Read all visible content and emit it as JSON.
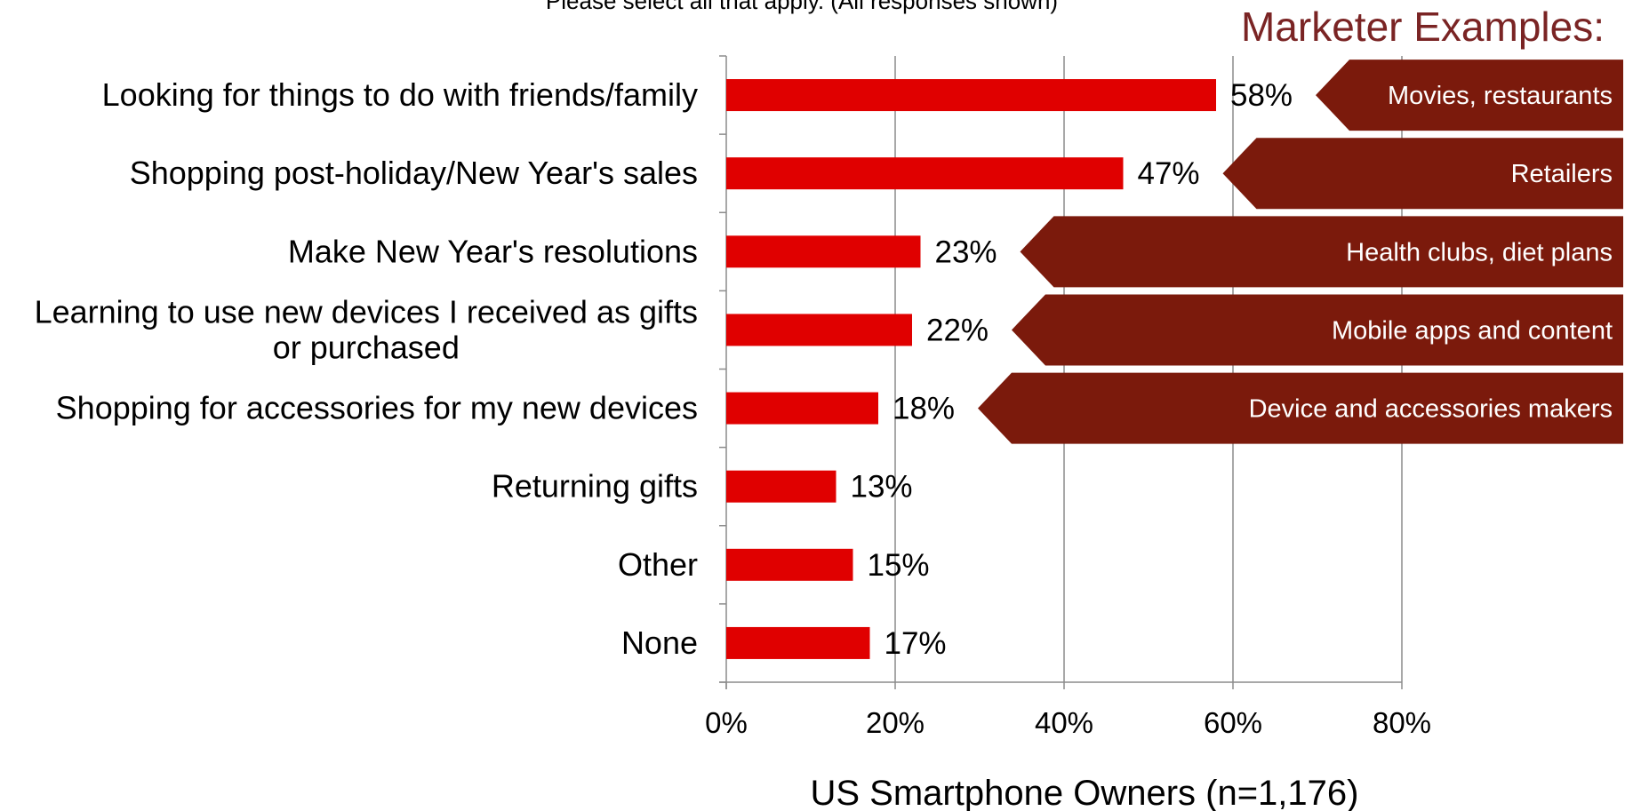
{
  "chart_data": {
    "type": "bar",
    "orientation": "horizontal",
    "subtitle": "Please select all that apply. (All responses shown)",
    "xlabel": "US Smartphone Owners (n=1,176)",
    "ylabel": "",
    "xlim": [
      0,
      80
    ],
    "xticks": [
      0,
      20,
      40,
      60,
      80
    ],
    "xtick_labels": [
      "0%",
      "20%",
      "40%",
      "60%",
      "80%"
    ],
    "grid": "vertical",
    "bar_color": "#e00000",
    "categories": [
      [
        "Looking for things to do with friends/family"
      ],
      [
        "Shopping post-holiday/New Year's sales"
      ],
      [
        "Make New Year's resolutions"
      ],
      [
        "Learning to use new devices I received as gifts",
        "or purchased"
      ],
      [
        "Shopping for accessories for my new devices"
      ],
      [
        "Returning gifts"
      ],
      [
        "Other"
      ],
      [
        "None"
      ]
    ],
    "values": [
      58,
      47,
      23,
      22,
      18,
      13,
      15,
      17
    ],
    "data_labels": [
      "58%",
      "47%",
      "23%",
      "22%",
      "18%",
      "13%",
      "15%",
      "17%"
    ]
  },
  "marketer": {
    "title": "Marketer Examples:",
    "color": "#7b1a0c",
    "callouts": [
      {
        "text": "Movies, restaurants",
        "row": 0
      },
      {
        "text": "Retailers",
        "row": 1
      },
      {
        "text": "Health clubs, diet plans",
        "row": 2
      },
      {
        "text": "Mobile apps and content",
        "row": 3
      },
      {
        "text": "Device and accessories makers",
        "row": 4
      }
    ]
  }
}
